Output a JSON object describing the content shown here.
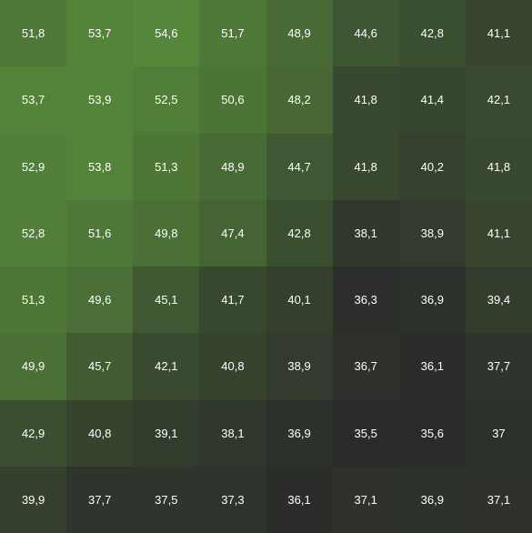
{
  "chart_data": {
    "type": "heatmap",
    "rows": [
      [
        "51,8",
        "53,7",
        "54,6",
        "51,7",
        "48,9",
        "44,6",
        "42,8",
        "41,1"
      ],
      [
        "53,7",
        "53,9",
        "52,5",
        "50,6",
        "48,2",
        "41,8",
        "41,4",
        "42,1"
      ],
      [
        "52,9",
        "53,8",
        "51,3",
        "48,9",
        "44,7",
        "41,8",
        "40,2",
        "41,8"
      ],
      [
        "52,8",
        "51,6",
        "49,8",
        "47,4",
        "42,8",
        "38,1",
        "38,9",
        "41,1"
      ],
      [
        "51,3",
        "49,6",
        "45,1",
        "41,7",
        "40,1",
        "36,3",
        "36,9",
        "39,4"
      ],
      [
        "49,9",
        "45,7",
        "42,1",
        "40,8",
        "38,9",
        "36,7",
        "36,1",
        "37,7"
      ],
      [
        "42,9",
        "40,8",
        "39,1",
        "38,1",
        "36,9",
        "35,5",
        "35,6",
        "37"
      ],
      [
        "39,9",
        "37,7",
        "37,5",
        "37,3",
        "36,1",
        "37,1",
        "36,9",
        "37,1"
      ]
    ],
    "color_scale": {
      "low_color": "#2a2a2a",
      "high_color": "#55873a",
      "text_color": "#ffffff"
    }
  }
}
